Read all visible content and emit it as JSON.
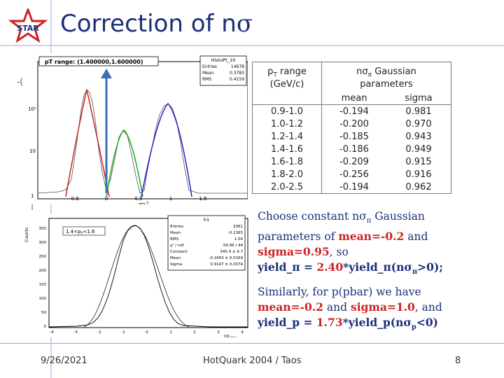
{
  "header": {
    "title_text": "Correction of n",
    "title_symbol": "σ",
    "logo_text": "STAR"
  },
  "plot_top": {
    "range_label": "pT range: (1.400000,1.600000)",
    "stats_title": "HistoPt_10",
    "stats": [
      {
        "k": "Entries",
        "v": "14678"
      },
      {
        "k": "Mean",
        "v": "0.3783"
      },
      {
        "k": "RMS",
        "v": "0.4159"
      }
    ],
    "y_ticks": [
      "10²",
      "10",
      "1"
    ],
    "x_ticks": [
      "-0.5",
      "0",
      "0.5",
      "1",
      "1.5"
    ],
    "x_label": "m²",
    "side_mark_top": "-(",
    "side_mark_bottom": "|"
  },
  "plot_bottom": {
    "label": "1.4<p",
    "label_sub": "T",
    "label_end": "<1.6",
    "stats_title": "h1",
    "stats": [
      {
        "k": "Entries",
        "v": "3361"
      },
      {
        "k": "Mean",
        "v": "-0.1365"
      },
      {
        "k": "RMS",
        "v": "1.04"
      },
      {
        "k": "χ² / ndf",
        "v": "59.96 / 44"
      },
      {
        "k": "Constant",
        "v": "345.4 ± 4.7"
      },
      {
        "k": "Mean",
        "v": "-0.1663 ± 0.0169"
      },
      {
        "k": "Sigma",
        "v": "0.9147 ± 0.0074"
      }
    ],
    "y_label": "Counts",
    "y_ticks": [
      "350",
      "300",
      "250",
      "200",
      "150",
      "100",
      "50",
      "0"
    ],
    "x_ticks": [
      "-4",
      "-3",
      "-2",
      "-1",
      "0",
      "1",
      "2",
      "3",
      "4"
    ],
    "x_label": "nσ",
    "x_label_sub": "dEdx"
  },
  "table": {
    "col1_header_line1": "p",
    "col1_header_sub": "T",
    "col1_header_line1_end": " range",
    "col1_header_line2": "(GeV/c)",
    "col2_header_prefix": "nσ",
    "col2_header_sub": "π",
    "col2_header_suffix": " Gaussian",
    "col2_header_line2": "parameters",
    "sub_mean": "mean",
    "sub_sigma": "sigma",
    "rows": [
      {
        "range": "0.9-1.0",
        "mean": "-0.194",
        "sigma": "0.981"
      },
      {
        "range": "1.0-1.2",
        "mean": "-0.200",
        "sigma": "0.970"
      },
      {
        "range": "1.2-1.4",
        "mean": "-0.185",
        "sigma": "0.943"
      },
      {
        "range": "1.4-1.6",
        "mean": "-0.186",
        "sigma": "0.949"
      },
      {
        "range": "1.6-1.8",
        "mean": "-0.209",
        "sigma": "0.915"
      },
      {
        "range": "1.8-2.0",
        "mean": "-0.256",
        "sigma": "0.916"
      },
      {
        "range": "2.0-2.5",
        "mean": "-0.194",
        "sigma": "0.962"
      }
    ]
  },
  "text1": {
    "l1a": "Choose constant nσ",
    "l1sub": "π",
    "l1b": " Gaussian",
    "l2a": "parameters of ",
    "l2red": "mean=-0.2",
    "l2b": " and",
    "l3red": "sigma=0.95",
    "l3b": ", so",
    "l4a": "yield_π = ",
    "l4red": "2.40",
    "l4b": "*yield_π(nσ",
    "l4sub": "π",
    "l4c": ">0);"
  },
  "text2": {
    "l1": "Similarly, for p(pbar) we have",
    "l2red": "mean=-0.2",
    "l2a": " and ",
    "l2red2": "sigma=1.0",
    "l2b": ", and",
    "l3a": "yield_p = ",
    "l3red": "1.73",
    "l3b": "*yield_p(nσ",
    "l3sub": "p",
    "l3c": "<0)"
  },
  "footer": {
    "date": "9/26/2021",
    "center": "HotQuark 2004 / Taos",
    "page": "8"
  }
}
